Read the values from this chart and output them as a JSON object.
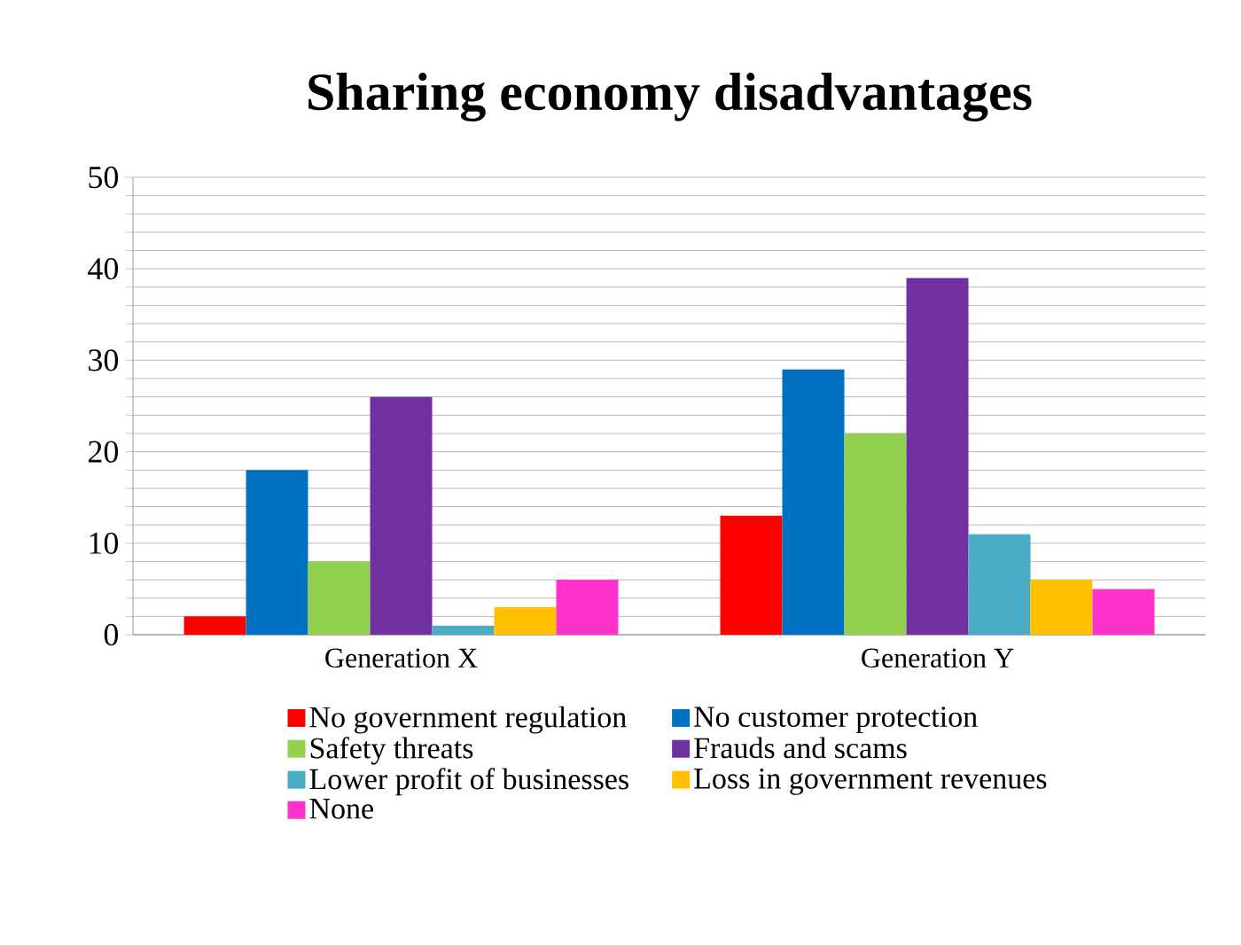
{
  "chart_data": {
    "type": "bar",
    "title": "Sharing economy disadvantages",
    "categories": [
      "Generation X",
      "Generation Y"
    ],
    "series": [
      {
        "name": "No government regulation",
        "color": "#ff0000",
        "values": [
          2,
          13
        ]
      },
      {
        "name": "No customer protection",
        "color": "#0070c0",
        "values": [
          18,
          29
        ]
      },
      {
        "name": "Safety threats",
        "color": "#92d050",
        "values": [
          8,
          22
        ]
      },
      {
        "name": "Frauds and scams",
        "color": "#7030a0",
        "values": [
          26,
          39
        ]
      },
      {
        "name": "Lower profit of businesses",
        "color": "#4bacc6",
        "values": [
          1,
          11
        ]
      },
      {
        "name": "Loss in government revenues",
        "color": "#ffc000",
        "values": [
          3,
          6
        ]
      },
      {
        "name": "None",
        "color": "#ff33cc",
        "values": [
          6,
          5
        ]
      }
    ],
    "ylim": [
      0,
      50
    ],
    "yticks": [
      0,
      {
        "value": 2,
        "label": null
      },
      {
        "value": 4,
        "label": null
      },
      {
        "value": 6,
        "label": null
      },
      {
        "value": 8,
        "label": null
      },
      10,
      {
        "value": 12,
        "label": null
      },
      {
        "value": 14,
        "label": null
      },
      {
        "value": 16,
        "label": null
      },
      {
        "value": 18,
        "label": null
      },
      20,
      {
        "value": 22,
        "label": null
      },
      {
        "value": 24,
        "label": null
      },
      {
        "value": 26,
        "label": null
      },
      {
        "value": 28,
        "label": null
      },
      30,
      {
        "value": 32,
        "label": null
      },
      {
        "value": 34,
        "label": null
      },
      {
        "value": 36,
        "label": null
      },
      {
        "value": 38,
        "label": null
      },
      40,
      {
        "value": 42,
        "label": null
      },
      {
        "value": 44,
        "label": null
      },
      {
        "value": 46,
        "label": null
      },
      {
        "value": 48,
        "label": null
      },
      50
    ],
    "grid": "y",
    "legend": "bottom"
  }
}
